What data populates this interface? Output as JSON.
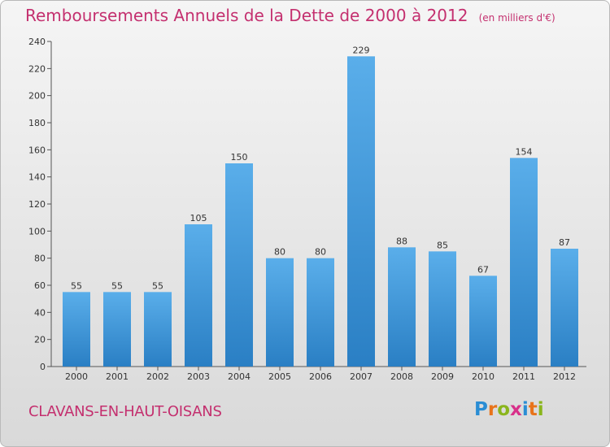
{
  "title": "Remboursements Annuels de la Dette de 2000 à 2012",
  "unit": "(en milliers d'€)",
  "commune": "CLAVANS-EN-HAUT-OISANS",
  "logo": {
    "text": "Proxiti",
    "letters": [
      {
        "ch": "P",
        "color": "#2a8dd4"
      },
      {
        "ch": "r",
        "color": "#e8731a"
      },
      {
        "ch": "o",
        "color": "#8ab51c"
      },
      {
        "ch": "x",
        "color": "#d8308a"
      },
      {
        "ch": "i",
        "color": "#2a8dd4"
      },
      {
        "ch": "t",
        "color": "#e8731a"
      },
      {
        "ch": "i",
        "color": "#8ab51c"
      }
    ]
  },
  "colors": {
    "title": "#c4306f",
    "bar_top": "#5aaeea",
    "bar_bottom": "#2a7fc4"
  },
  "chart_data": {
    "type": "bar",
    "title": "Remboursements Annuels de la Dette de 2000 à 2012",
    "categories": [
      "2000",
      "2001",
      "2002",
      "2003",
      "2004",
      "2005",
      "2006",
      "2007",
      "2008",
      "2009",
      "2010",
      "2011",
      "2012"
    ],
    "values": [
      55,
      55,
      55,
      105,
      150,
      80,
      80,
      229,
      88,
      85,
      67,
      154,
      87
    ],
    "ylim": [
      0,
      240
    ],
    "yticks": [
      0,
      20,
      40,
      60,
      80,
      100,
      120,
      140,
      160,
      180,
      200,
      220,
      240
    ],
    "grid": false,
    "data_labels": true
  }
}
